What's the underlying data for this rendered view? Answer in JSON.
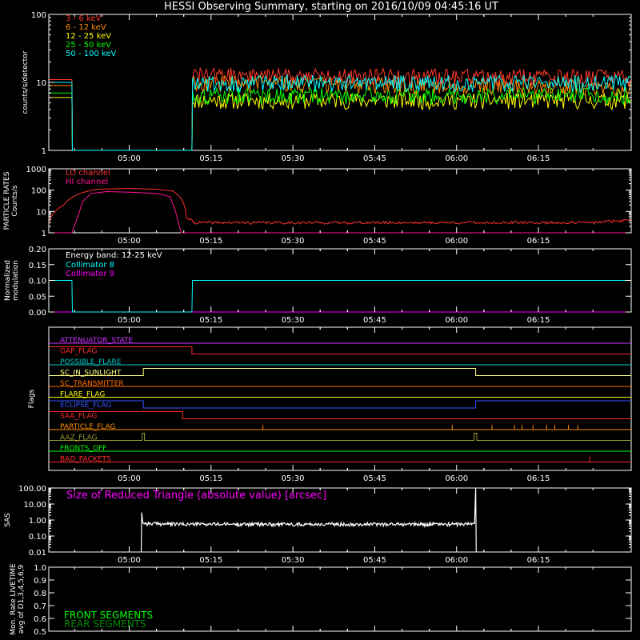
{
  "title": "HESSI Observing Summary, starting on 2016/10/09 04:45:16 UT",
  "time_ticks": [
    "05:00",
    "05:15",
    "05:30",
    "05:45",
    "06:00",
    "06:15"
  ],
  "time_tick_minutes": [
    300,
    315,
    330,
    345,
    360,
    375
  ],
  "time_range_minutes": [
    285.27,
    392.0
  ],
  "colors": {
    "background": "#000000",
    "axes": "#ffffff",
    "e3_6": "#ff3a2a",
    "e6_12": "#ff8c00",
    "e12_25": "#ffff00",
    "e25_50": "#00ff00",
    "e50_100": "#00ffff",
    "lo_channel": "#ff3030",
    "hi_channel": "#ff1493",
    "collimator8": "#00ffff",
    "collimator9": "#ff00ff",
    "sas": "#ffffff",
    "front_segments": "#00ff00",
    "rear_segments": "#008800"
  },
  "chart_data": [
    {
      "id": "count_rates",
      "type": "line",
      "ylabel": "counts/s/detector",
      "yscale": "log",
      "ylim": [
        1,
        100
      ],
      "ytick_labels": [
        "1",
        "10",
        "100"
      ],
      "legend_placement": "top-left",
      "series": [
        {
          "name": "3 - 6 keV",
          "color": "#ff3a2a",
          "x": [
            285.3,
            289.5,
            289.6,
            311.5,
            311.6,
            392.0
          ],
          "y": [
            11,
            11,
            1,
            1,
            13,
            12
          ]
        },
        {
          "name": "6 - 12 keV",
          "color": "#ff8c00",
          "x": [
            285.3,
            289.5,
            289.6,
            311.5,
            311.6,
            392.0
          ],
          "y": [
            9,
            9,
            1,
            1,
            10,
            8.5
          ]
        },
        {
          "name": "12 - 25 keV",
          "color": "#ffff00",
          "x": [
            285.3,
            289.5,
            289.6,
            311.5,
            311.6,
            392.0
          ],
          "y": [
            6,
            6,
            1,
            1,
            5.5,
            5.5
          ]
        },
        {
          "name": "25 - 50 keV",
          "color": "#00ff00",
          "x": [
            285.3,
            289.5,
            289.6,
            311.5,
            311.6,
            392.0
          ],
          "y": [
            7,
            7,
            1,
            1,
            6.5,
            6.5
          ]
        },
        {
          "name": "50 - 100 keV",
          "color": "#00ffff",
          "x": [
            285.3,
            289.5,
            289.6,
            311.5,
            311.6,
            392.0
          ],
          "y": [
            10,
            10,
            1,
            1,
            10,
            10
          ]
        }
      ]
    },
    {
      "id": "particle_rates",
      "type": "line",
      "ylabel_lines": [
        "PARTICLE RATES",
        "Counts/s"
      ],
      "yscale": "log",
      "ylim": [
        1,
        1000
      ],
      "ytick_labels": [
        "1",
        "10",
        "100",
        "1000"
      ],
      "legend_placement": "top-left",
      "series": [
        {
          "name": "LO channel",
          "color": "#ff3030",
          "x": [
            285.3,
            288,
            291,
            294,
            300,
            305,
            308,
            309.5,
            310.5,
            312,
            320,
            340,
            360,
            385,
            392
          ],
          "y": [
            3,
            20,
            70,
            110,
            120,
            110,
            90,
            40,
            5,
            3,
            3,
            3,
            3,
            3,
            4
          ]
        },
        {
          "name": "HI channel",
          "color": "#ff1493",
          "x": [
            285.3,
            289.5,
            290.5,
            291.5,
            293,
            296,
            300,
            305,
            307.5,
            308.5,
            309.5,
            392
          ],
          "y": [
            1,
            1,
            5,
            30,
            70,
            85,
            80,
            70,
            50,
            10,
            1,
            1
          ]
        }
      ]
    },
    {
      "id": "modulation",
      "type": "line",
      "ylabel_lines": [
        "Normalized",
        "modulation"
      ],
      "ylim": [
        0.0,
        0.2
      ],
      "ytick_labels": [
        "0.00",
        "0.05",
        "0.10",
        "0.15",
        "0.20"
      ],
      "legend_title": "Energy band: 12-25 keV",
      "legend_placement": "top-left",
      "series": [
        {
          "name": "Collimator 8",
          "color": "#00ffff",
          "x": [
            285.3,
            289.5,
            289.6,
            311.5,
            311.6,
            392
          ],
          "y": [
            0.1,
            0.1,
            0.0,
            0.0,
            0.1,
            0.1
          ]
        },
        {
          "name": "Collimator 9",
          "color": "#ff00ff",
          "x": [
            285.3,
            392
          ],
          "y": [
            0.0,
            0.0
          ]
        }
      ]
    },
    {
      "id": "flags",
      "type": "line",
      "ylabel": "Flags",
      "flags": [
        {
          "name": "ATTENUATOR_STATE",
          "color": "#cc33ff",
          "x": [
            285.3,
            392
          ],
          "y": [
            0,
            0
          ]
        },
        {
          "name": "GAP_FLAG",
          "color": "#ff2a2a",
          "x": [
            285.3,
            311.5,
            311.5,
            392
          ],
          "y": [
            1,
            1,
            0,
            0
          ]
        },
        {
          "name": "POSSIBLE_FLARE",
          "color": "#00cccc",
          "x": [
            285.3,
            392
          ],
          "y": [
            0,
            0
          ]
        },
        {
          "name": "SC_IN_SUNLIGHT",
          "color": "#ffff80",
          "x": [
            285.3,
            302.6,
            302.6,
            363.5,
            363.5,
            392
          ],
          "y": [
            0,
            0,
            1,
            1,
            0,
            0
          ]
        },
        {
          "name": "SC_TRANSMITTER",
          "color": "#ff6a00",
          "x": [
            285.3,
            392
          ],
          "y": [
            0,
            0
          ]
        },
        {
          "name": "FLARE_FLAG",
          "color": "#ffff00",
          "x": [
            285.3,
            392
          ],
          "y": [
            0,
            0
          ]
        },
        {
          "name": "ECLIPSE_FLAG",
          "color": "#3355ff",
          "x": [
            285.3,
            302.6,
            302.6,
            363.5,
            363.5,
            392
          ],
          "y": [
            1,
            1,
            0,
            0,
            1,
            1
          ]
        },
        {
          "name": "SAA_FLAG",
          "color": "#ff2a2a",
          "x": [
            285.3,
            309.8,
            309.8,
            392
          ],
          "y": [
            1,
            1,
            0,
            0
          ]
        },
        {
          "name": "PARTICLE_FLAG",
          "color": "#ff8c00",
          "x": [
            285.3,
            392
          ],
          "y": [
            0,
            0
          ]
        },
        {
          "name": "AAZ_FLAG",
          "color": "#999933",
          "x": [
            285.3,
            302.4,
            302.4,
            302.8,
            302.8,
            363.2,
            363.2,
            363.7,
            363.7,
            392
          ],
          "y": [
            0,
            0,
            1,
            1,
            0,
            0,
            1,
            1,
            0,
            0
          ]
        },
        {
          "name": "FRONTS_OFF",
          "color": "#00ff00",
          "x": [
            285.3,
            392
          ],
          "y": [
            0,
            0
          ]
        },
        {
          "name": "BAD_PACKETS",
          "color": "#ff2a2a",
          "x": [
            285.3,
            392
          ],
          "y": [
            0,
            0
          ]
        }
      ]
    },
    {
      "id": "sas",
      "type": "line",
      "ylabel": "SAS",
      "yscale": "log",
      "ylim": [
        0.01,
        100.0
      ],
      "ytick_labels": [
        "0.01",
        "0.10",
        "1.00",
        "10.00",
        "100.00"
      ],
      "annotation": "Size of Reduced Triangle (absolute value) [arcsec]",
      "series": [
        {
          "name": "",
          "color": "#ffffff",
          "x": [
            302.2,
            302.3,
            302.5,
            303,
            310,
            320,
            330,
            340,
            350,
            360,
            363.3,
            363.5,
            363.6
          ],
          "y": [
            0.01,
            3.0,
            0.7,
            0.6,
            0.55,
            0.55,
            0.55,
            0.55,
            0.55,
            0.55,
            0.6,
            100.0,
            0.01
          ]
        }
      ]
    },
    {
      "id": "livetime",
      "type": "line",
      "ylabel_lines": [
        "Mon. Rate LIVETIME",
        "avg of D1,3,4,5,6,9"
      ],
      "ylim": [
        0.5,
        1.0
      ],
      "ytick_labels": [
        "0.5",
        "0.6",
        "0.7",
        "0.8",
        "0.9",
        "1.0"
      ],
      "legend_placement": "bottom-left",
      "series": [
        {
          "name": "FRONT SEGMENTS",
          "color": "#00ff00",
          "x": [],
          "y": []
        },
        {
          "name": "REAR SEGMENTS",
          "color": "#008800",
          "x": [],
          "y": []
        }
      ]
    }
  ]
}
